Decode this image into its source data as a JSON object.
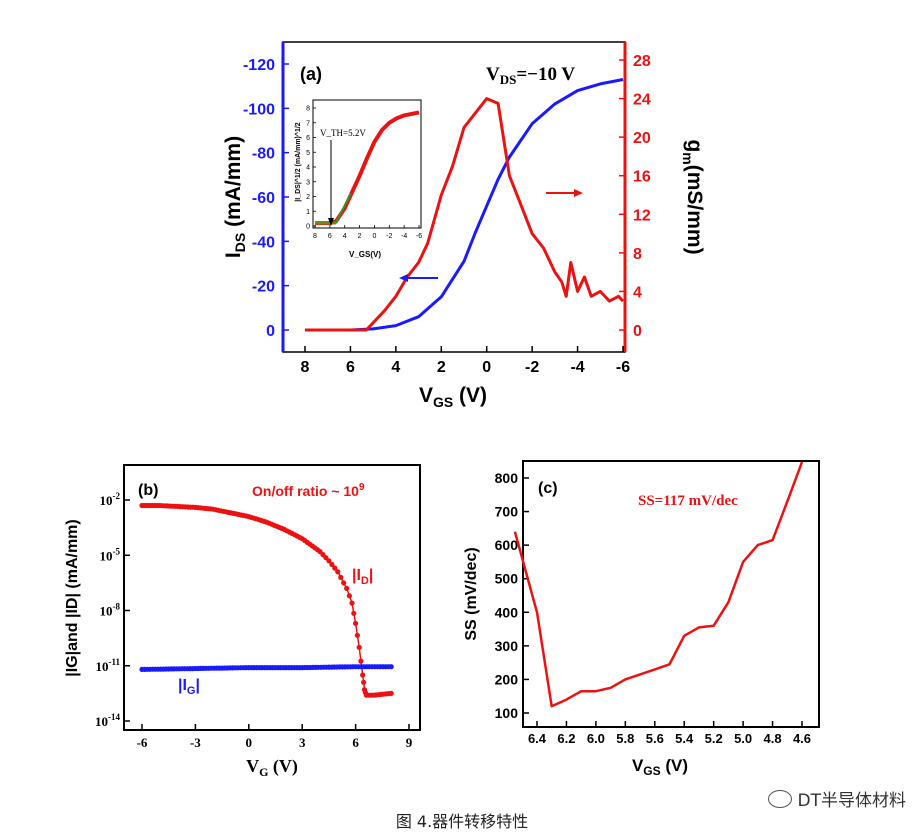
{
  "chart_data": [
    {
      "type": "line",
      "panel_label": "(a)",
      "annotation": "V_DS=−10 V",
      "annotation_main": "V",
      "annotation_sub": "DS",
      "annotation_rest": "=−10 V",
      "xlabel_main": "V",
      "xlabel_sub": "GS",
      "xlabel_rest": " (V)",
      "ylabel_main": "I",
      "ylabel_sub": "DS",
      "ylabel_rest": " (mA/mm)",
      "y2label_main": "g",
      "y2label_sub": "m",
      "y2label_rest": "(mS/mm)",
      "xlim": [
        8,
        -6
      ],
      "ylim": [
        0,
        -130
      ],
      "y2lim": [
        0,
        29
      ],
      "x_ticks": [
        "8",
        "6",
        "4",
        "2",
        "0",
        "-2",
        "-4",
        "-6"
      ],
      "y_ticks": [
        "0",
        "-20",
        "-40",
        "-60",
        "-80",
        "-100",
        "-120"
      ],
      "y2_ticks": [
        "0",
        "4",
        "8",
        "12",
        "16",
        "20",
        "24",
        "28"
      ],
      "series": [
        {
          "name": "I_DS",
          "axis": "left",
          "color": "#1a1aff",
          "x": [
            8,
            6,
            5,
            4,
            3,
            2,
            1,
            0.5,
            0,
            -0.5,
            -1,
            -2,
            -3,
            -4,
            -5,
            -6
          ],
          "y": [
            0,
            0,
            -0.5,
            -2,
            -6,
            -15,
            -31,
            -44,
            -56,
            -68,
            -78,
            -93,
            -102,
            -108,
            -111,
            -113
          ]
        },
        {
          "name": "g_m",
          "axis": "right",
          "color": "#ee1111",
          "x": [
            8,
            6,
            5.3,
            4.5,
            4,
            3.5,
            3,
            2.6,
            2,
            1.5,
            1,
            0.5,
            0,
            -0.5,
            -1,
            -1.5,
            -2,
            -2.5,
            -3,
            -3.3,
            -3.5,
            -3.7,
            -4,
            -4.3,
            -4.6,
            -5,
            -5.4,
            -5.8,
            -6
          ],
          "y": [
            0,
            0,
            0,
            2,
            3.5,
            5.5,
            7,
            9,
            14,
            17,
            21,
            22.5,
            24,
            23.5,
            16,
            13,
            10,
            8.5,
            6,
            5,
            3.5,
            7,
            4,
            5.5,
            3.5,
            4,
            3,
            3.5,
            3
          ]
        }
      ],
      "inset": {
        "ylabel": "|I_DS|^1/2 (mA/mm)^1/2",
        "xlabel": "V_GS(V)",
        "vth_label": "V_TH=5.2V",
        "x_ticks": [
          "8",
          "6",
          "4",
          "2",
          "0",
          "-2",
          "-4",
          "-6"
        ],
        "y_ticks": [
          "0",
          "1",
          "2",
          "3",
          "4",
          "5",
          "6",
          "7",
          "8"
        ],
        "xlim": [
          8,
          -6
        ],
        "ylim": [
          0,
          8.5
        ],
        "x": [
          8,
          6,
          5.2,
          4,
          3,
          2,
          1,
          0,
          -1,
          -2,
          -3,
          -4,
          -5,
          -6
        ],
        "y": [
          0.2,
          0.2,
          0.3,
          1.2,
          2.3,
          3.4,
          4.6,
          5.7,
          6.5,
          7.0,
          7.3,
          7.5,
          7.6,
          7.7
        ]
      }
    },
    {
      "type": "scatter",
      "panel_label": "(b)",
      "annotation": "On/off ratio ~ 10",
      "annotation_sup": "9",
      "xlabel_main": "V",
      "xlabel_sub": "G",
      "xlabel_rest": " (V)",
      "ylabel": "|IG|and |ID| (mA/mm)",
      "xlim": [
        -7,
        9
      ],
      "ylim_log10": [
        -14,
        -1
      ],
      "x_ticks": [
        "-6",
        "-3",
        "0",
        "3",
        "6",
        "9"
      ],
      "y_ticks_exp": [
        "-2",
        "-5",
        "-8",
        "-11",
        "-14"
      ],
      "series": [
        {
          "name": "|I_D|",
          "label_main": "|I",
          "label_sub": "D",
          "label_rest": "|",
          "color": "#ee1111",
          "x": [
            -6,
            -5,
            -4,
            -3,
            -2,
            -1,
            0,
            1,
            2,
            3,
            4,
            4.5,
            5,
            5.5,
            5.8,
            6,
            6.2,
            6.4,
            6.5,
            6.6,
            7,
            8
          ],
          "log10_y": [
            -2.3,
            -2.3,
            -2.35,
            -2.4,
            -2.5,
            -2.7,
            -2.9,
            -3.2,
            -3.6,
            -4.1,
            -4.8,
            -5.3,
            -5.9,
            -6.8,
            -7.6,
            -8.7,
            -10,
            -11.5,
            -12.3,
            -12.6,
            -12.6,
            -12.5
          ]
        },
        {
          "name": "|I_G|",
          "label_main": "|I",
          "label_sub": "G",
          "label_rest": "|",
          "color": "#1a1aff",
          "x": [
            -6,
            -3,
            0,
            3,
            6,
            8
          ],
          "log10_y": [
            -11.2,
            -11.15,
            -11.1,
            -11.1,
            -11.05,
            -11.05
          ]
        }
      ]
    },
    {
      "type": "line",
      "panel_label": "(c)",
      "annotation": "SS=117 mV/dec",
      "xlabel_main": "V",
      "xlabel_sub": "GS",
      "xlabel_rest": " (V)",
      "ylabel": "SS (mV/dec)",
      "xlim": [
        6.55,
        4.5
      ],
      "ylim": [
        50,
        860
      ],
      "x_ticks": [
        "6.4",
        "6.2",
        "6.0",
        "5.8",
        "5.6",
        "5.4",
        "5.2",
        "5.0",
        "4.8",
        "4.6"
      ],
      "y_ticks": [
        "100",
        "200",
        "300",
        "400",
        "500",
        "600",
        "700",
        "800"
      ],
      "series": [
        {
          "name": "SS",
          "color": "#ee1111",
          "x": [
            6.55,
            6.4,
            6.3,
            6.2,
            6.1,
            6.0,
            5.9,
            5.8,
            5.7,
            5.6,
            5.5,
            5.4,
            5.3,
            5.2,
            5.1,
            5.0,
            4.9,
            4.8,
            4.7,
            4.6
          ],
          "y": [
            640,
            400,
            120,
            140,
            165,
            165,
            175,
            200,
            215,
            230,
            245,
            330,
            355,
            360,
            430,
            550,
            600,
            615,
            730,
            860
          ]
        }
      ]
    }
  ],
  "caption": "图 4.器件转移特性",
  "watermark": "DT半导体材料"
}
